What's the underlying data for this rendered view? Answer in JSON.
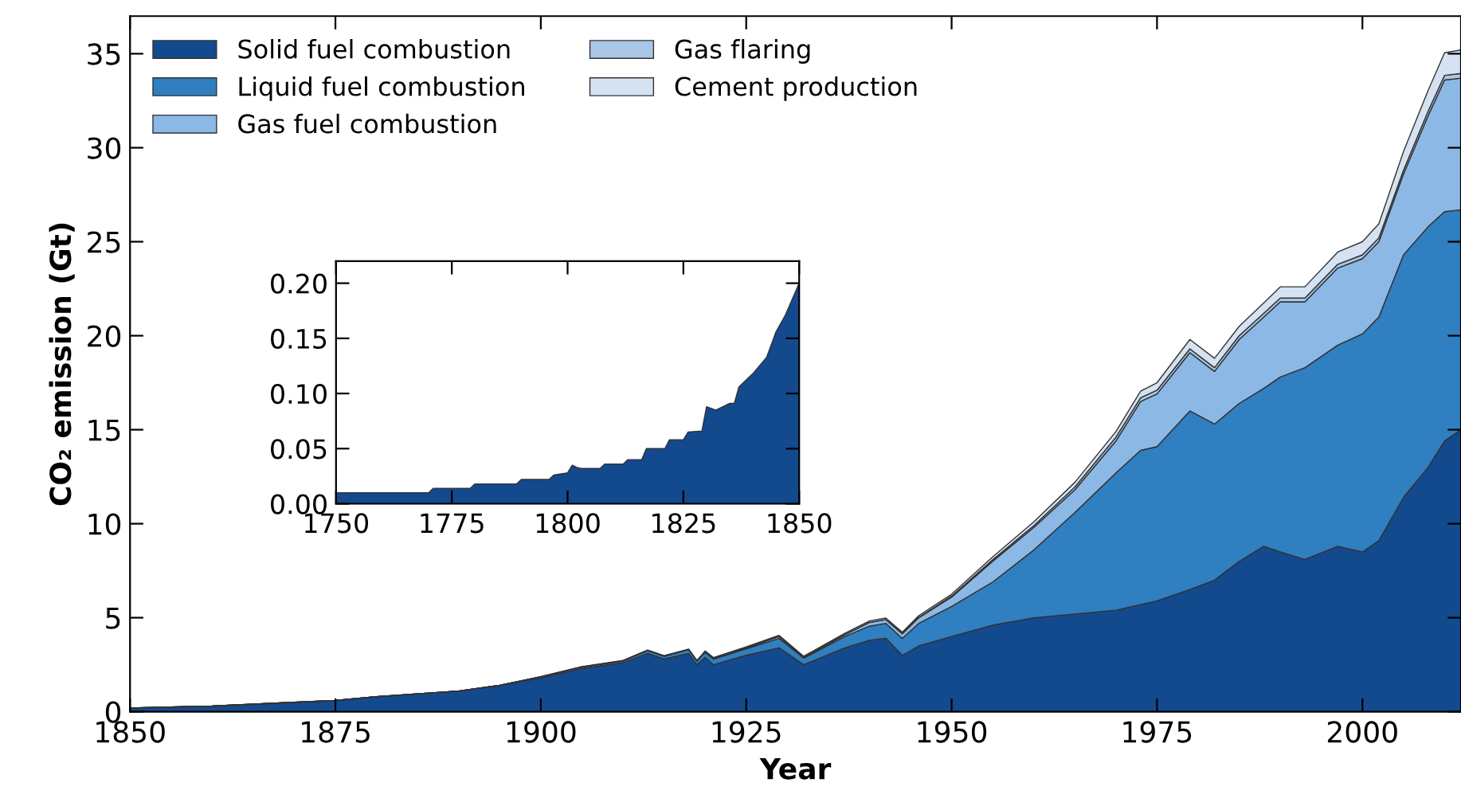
{
  "chart_data": [
    {
      "type": "area",
      "stacked": true,
      "xlabel": "Year",
      "ylabel": "CO₂ emission (Gt)",
      "legend": "top left",
      "x": [
        1850,
        1860,
        1870,
        1875,
        1880,
        1885,
        1890,
        1895,
        1900,
        1905,
        1910,
        1913,
        1915,
        1918,
        1919,
        1920,
        1921,
        1925,
        1929,
        1932,
        1937,
        1940,
        1942,
        1944,
        1946,
        1950,
        1955,
        1960,
        1965,
        1970,
        1973,
        1975,
        1979,
        1982,
        1985,
        1988,
        1990,
        1993,
        1997,
        2000,
        2002,
        2005,
        2008,
        2010,
        2012
      ],
      "series": [
        {
          "name": "Solid fuel combustion",
          "color": "#134a8e",
          "values": [
            0.2,
            0.3,
            0.5,
            0.6,
            0.8,
            0.95,
            1.1,
            1.4,
            1.8,
            2.3,
            2.6,
            3.1,
            2.8,
            3.1,
            2.5,
            2.9,
            2.5,
            3.0,
            3.4,
            2.5,
            3.4,
            3.8,
            3.9,
            3.0,
            3.5,
            4.0,
            4.6,
            5.0,
            5.2,
            5.4,
            5.7,
            5.9,
            6.5,
            7.0,
            8.0,
            8.8,
            8.5,
            8.1,
            8.8,
            8.5,
            9.1,
            11.4,
            13.0,
            14.4,
            15.0
          ]
        },
        {
          "name": "Liquid fuel combustion",
          "color": "#2f7fc1",
          "values": [
            0,
            0,
            0,
            0,
            0,
            0,
            0,
            0,
            0.05,
            0.08,
            0.1,
            0.15,
            0.15,
            0.2,
            0.2,
            0.25,
            0.3,
            0.35,
            0.5,
            0.35,
            0.6,
            0.75,
            0.8,
            0.9,
            1.2,
            1.6,
            2.3,
            3.6,
            5.4,
            7.3,
            8.2,
            8.2,
            9.5,
            8.3,
            8.4,
            8.4,
            9.3,
            10.2,
            10.7,
            11.6,
            11.9,
            12.9,
            12.8,
            12.2,
            11.7
          ]
        },
        {
          "name": "Gas fuel combustion",
          "color": "#8cb8e6",
          "values": [
            0,
            0,
            0,
            0,
            0,
            0,
            0,
            0,
            0,
            0,
            0,
            0,
            0,
            0,
            0,
            0.05,
            0.05,
            0.05,
            0.1,
            0.05,
            0.1,
            0.2,
            0.2,
            0.25,
            0.3,
            0.5,
            1.1,
            1.2,
            1.2,
            1.7,
            2.6,
            2.8,
            3.1,
            2.8,
            3.4,
            3.8,
            4.0,
            3.5,
            4.1,
            4.0,
            4.0,
            4.3,
            5.9,
            7.0,
            7.0
          ]
        },
        {
          "name": "Gas flaring",
          "color": "#a9c6e6",
          "values": [
            0,
            0,
            0,
            0,
            0,
            0,
            0,
            0,
            0,
            0,
            0,
            0,
            0,
            0,
            0,
            0,
            0,
            0,
            0,
            0,
            0,
            0,
            0,
            0,
            0.02,
            0.05,
            0.08,
            0.1,
            0.15,
            0.2,
            0.2,
            0.2,
            0.2,
            0.2,
            0.2,
            0.2,
            0.2,
            0.2,
            0.2,
            0.2,
            0.2,
            0.2,
            0.25,
            0.25,
            0.25
          ]
        },
        {
          "name": "Cement production",
          "color": "#d4e2f1",
          "values": [
            0,
            0,
            0,
            0,
            0,
            0,
            0,
            0,
            0.02,
            0.02,
            0.03,
            0.03,
            0.03,
            0.03,
            0.03,
            0.03,
            0.03,
            0.05,
            0.06,
            0.05,
            0.07,
            0.08,
            0.08,
            0.08,
            0.09,
            0.1,
            0.15,
            0.2,
            0.25,
            0.3,
            0.35,
            0.4,
            0.5,
            0.5,
            0.5,
            0.55,
            0.6,
            0.6,
            0.65,
            0.7,
            0.75,
            1.0,
            1.1,
            1.2,
            1.25
          ]
        }
      ],
      "xlim": [
        1850,
        2012
      ],
      "xticks": [
        1850,
        1875,
        1900,
        1925,
        1950,
        1975,
        2000
      ],
      "ylim": [
        0,
        37
      ],
      "yticks": [
        0,
        5,
        10,
        15,
        20,
        25,
        30,
        35
      ]
    },
    {
      "type": "area",
      "x": [
        1750,
        1770,
        1771,
        1779,
        1780,
        1789,
        1790,
        1796,
        1797,
        1800,
        1801,
        1802,
        1803,
        1807,
        1808,
        1812,
        1813,
        1816,
        1817,
        1821,
        1822,
        1825,
        1826,
        1829,
        1830,
        1832,
        1835,
        1836,
        1837,
        1840,
        1843,
        1845,
        1847,
        1850
      ],
      "series": [
        {
          "color": "#134a8e",
          "values": [
            0.01,
            0.01,
            0.014,
            0.014,
            0.018,
            0.018,
            0.022,
            0.022,
            0.026,
            0.028,
            0.035,
            0.033,
            0.032,
            0.032,
            0.036,
            0.036,
            0.04,
            0.04,
            0.05,
            0.05,
            0.058,
            0.058,
            0.065,
            0.066,
            0.088,
            0.085,
            0.091,
            0.091,
            0.106,
            0.118,
            0.133,
            0.156,
            0.171,
            0.2
          ]
        }
      ],
      "xlim": [
        1750,
        1850
      ],
      "xticks": [
        1750,
        1775,
        1800,
        1825,
        1850
      ],
      "ylim": [
        0,
        0.22
      ],
      "yticks": [
        {
          "value": 0,
          "label": "0.00"
        },
        {
          "value": 0.05,
          "label": "0.05"
        },
        {
          "value": 0.1,
          "label": "0.10"
        },
        {
          "value": 0.15,
          "label": "0.15"
        },
        {
          "value": 0.2,
          "label": "0.20"
        }
      ]
    }
  ]
}
